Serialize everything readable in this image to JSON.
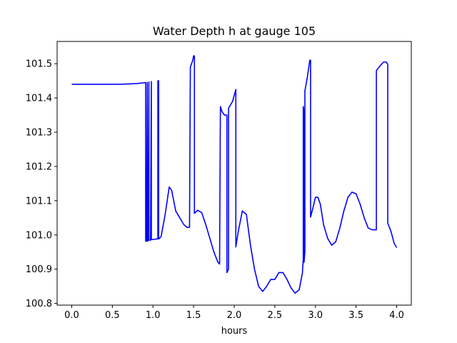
{
  "chart_data": {
    "type": "line",
    "title": "Water Depth h at gauge 105",
    "xlabel": "hours",
    "ylabel": "",
    "xlim": [
      -0.18,
      4.18
    ],
    "ylim": [
      100.795,
      101.565
    ],
    "xticks": [
      0.0,
      0.5,
      1.0,
      1.5,
      2.0,
      2.5,
      3.0,
      3.5,
      4.0
    ],
    "xtick_labels": [
      "0.0",
      "0.5",
      "1.0",
      "1.5",
      "2.0",
      "2.5",
      "3.0",
      "3.5",
      "4.0"
    ],
    "yticks": [
      100.8,
      100.9,
      101.0,
      101.1,
      101.2,
      101.3,
      101.4,
      101.5
    ],
    "ytick_labels": [
      "100.8",
      "100.9",
      "101.0",
      "101.1",
      "101.2",
      "101.3",
      "101.4",
      "101.5"
    ],
    "grid": false,
    "line_color": "#0000ff",
    "series": [
      {
        "x": [
          0.0,
          0.3,
          0.6,
          0.8,
          0.91,
          0.91,
          0.92,
          0.93,
          0.93,
          0.94,
          0.95,
          0.95,
          0.97,
          0.98,
          0.98,
          1.0,
          1.02,
          1.06,
          1.06,
          1.07,
          1.07,
          1.1,
          1.15,
          1.2,
          1.23,
          1.28,
          1.33,
          1.38,
          1.42,
          1.45,
          1.46,
          1.49,
          1.5,
          1.51,
          1.51,
          1.55,
          1.6,
          1.65,
          1.7,
          1.75,
          1.8,
          1.82,
          1.83,
          1.85,
          1.88,
          1.91,
          1.91,
          1.93,
          1.93,
          1.98,
          2.02,
          2.02,
          2.05,
          2.1,
          2.15,
          2.2,
          2.25,
          2.3,
          2.35,
          2.4,
          2.45,
          2.5,
          2.55,
          2.6,
          2.65,
          2.7,
          2.75,
          2.8,
          2.84,
          2.85,
          2.85,
          2.86,
          2.86,
          2.87,
          2.87,
          2.9,
          2.93,
          2.94,
          2.94,
          2.97,
          3.0,
          3.03,
          3.06,
          3.1,
          3.15,
          3.2,
          3.25,
          3.3,
          3.35,
          3.4,
          3.45,
          3.5,
          3.55,
          3.6,
          3.65,
          3.7,
          3.75,
          3.75,
          3.8,
          3.84,
          3.87,
          3.89,
          3.89,
          3.93,
          3.97,
          4.0
        ],
        "y": [
          101.44,
          101.44,
          101.44,
          101.442,
          101.445,
          100.982,
          100.982,
          101.445,
          100.982,
          100.983,
          101.447,
          100.985,
          100.985,
          101.448,
          100.986,
          100.987,
          100.987,
          100.989,
          101.45,
          101.45,
          100.988,
          100.995,
          101.06,
          101.14,
          101.13,
          101.07,
          101.05,
          101.03,
          101.022,
          101.022,
          101.49,
          101.51,
          101.523,
          101.523,
          101.063,
          101.072,
          101.065,
          101.03,
          100.99,
          100.95,
          100.92,
          100.915,
          101.375,
          101.36,
          101.35,
          101.35,
          100.89,
          100.9,
          101.37,
          101.39,
          101.425,
          100.965,
          101.01,
          101.07,
          101.06,
          100.97,
          100.9,
          100.85,
          100.835,
          100.85,
          100.87,
          100.87,
          100.89,
          100.89,
          100.87,
          100.845,
          100.83,
          100.84,
          100.89,
          100.93,
          101.375,
          101.36,
          100.92,
          100.95,
          101.42,
          101.46,
          101.51,
          101.51,
          101.052,
          101.08,
          101.11,
          101.11,
          101.09,
          101.03,
          100.99,
          100.97,
          100.98,
          101.02,
          101.07,
          101.11,
          101.125,
          101.12,
          101.09,
          101.05,
          101.02,
          101.015,
          101.015,
          101.48,
          101.495,
          101.505,
          101.505,
          101.498,
          101.035,
          101.01,
          100.975,
          100.963
        ]
      }
    ]
  }
}
